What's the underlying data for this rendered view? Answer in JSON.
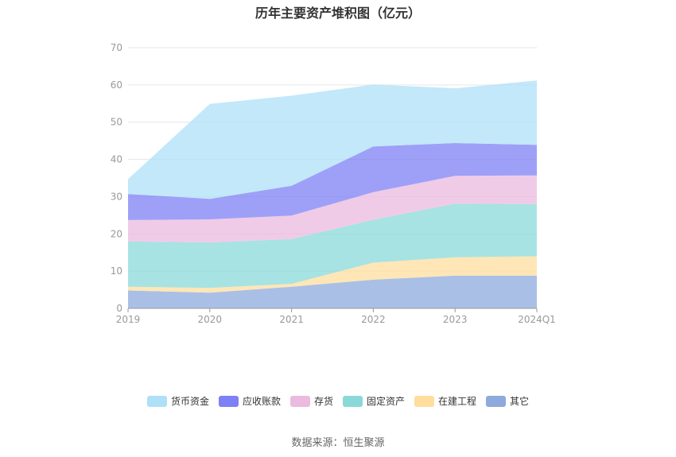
{
  "chart_data": {
    "type": "area",
    "stacked": true,
    "title": "历年主要资产堆积图（亿元）",
    "categories": [
      "2019",
      "2020",
      "2021",
      "2022",
      "2023",
      "2024Q1"
    ],
    "ylim": [
      0,
      70
    ],
    "yticks": [
      0,
      10,
      20,
      30,
      40,
      50,
      60,
      70
    ],
    "grid": true,
    "legend_position": "bottom",
    "series": [
      {
        "name": "其它",
        "color": "#8eaadc",
        "values": [
          4.8,
          4.2,
          5.8,
          7.7,
          8.8,
          8.8
        ]
      },
      {
        "name": "在建工程",
        "color": "#ffdd9d",
        "values": [
          1.0,
          1.3,
          0.8,
          4.6,
          4.9,
          5.2
        ]
      },
      {
        "name": "固定资产",
        "color": "#8ad9d8",
        "values": [
          12.2,
          12.2,
          12.0,
          11.5,
          14.4,
          14.0
        ]
      },
      {
        "name": "存货",
        "color": "#ebbadf",
        "values": [
          5.7,
          6.2,
          6.3,
          7.4,
          7.5,
          7.7
        ]
      },
      {
        "name": "应收账款",
        "color": "#7e80f5",
        "values": [
          7.0,
          5.5,
          8.0,
          12.3,
          8.8,
          8.2
        ]
      },
      {
        "name": "货币资金",
        "color": "#aee0f8",
        "values": [
          4.0,
          25.5,
          24.2,
          16.6,
          14.7,
          17.3
        ]
      }
    ]
  },
  "legend_order": [
    "货币资金",
    "应收账款",
    "存货",
    "固定资产",
    "在建工程",
    "其它"
  ],
  "source": "数据来源：恒生聚源"
}
